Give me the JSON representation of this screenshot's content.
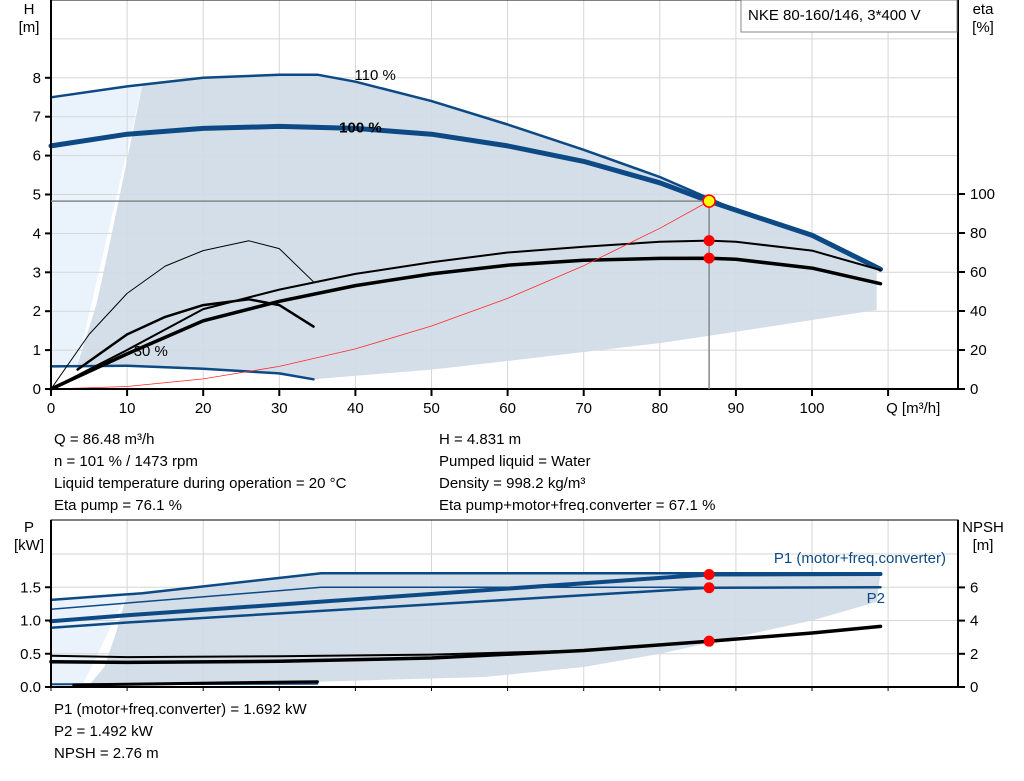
{
  "chart_data": [
    {
      "type": "line",
      "title": "NKE 80-160/146, 3*400 V",
      "xlabel": "Q [m³/h]",
      "ylabel": "H\n[m]",
      "ylabel_lines": [
        "H",
        "[m]"
      ],
      "y2label_lines": [
        "eta",
        "[%]"
      ],
      "xlim": [
        0,
        110
      ],
      "ylim": [
        0,
        9
      ],
      "y2lim": [
        0,
        100
      ],
      "grid": true,
      "x_ticks": [
        "0",
        "10",
        "20",
        "30",
        "40",
        "50",
        "60",
        "70",
        "80",
        "90",
        "100"
      ],
      "y_ticks": [
        "0",
        "1",
        "2",
        "3",
        "4",
        "5",
        "6",
        "7",
        "8"
      ],
      "y2_ticks": [
        "0",
        "20",
        "40",
        "60",
        "80",
        "100"
      ],
      "curve_labels": [
        "110 %",
        "100 %",
        "30 %"
      ],
      "series": [
        {
          "id": "head-110",
          "axis": "H",
          "color": "#0d4a85",
          "x": [
            0,
            10,
            20,
            30,
            35,
            40,
            50,
            60,
            70,
            80,
            86.48,
            90,
            100,
            109
          ],
          "y": [
            7.5,
            7.78,
            8.0,
            8.08,
            8.08,
            7.9,
            7.4,
            6.8,
            6.15,
            5.45,
            4.9,
            4.6,
            3.95,
            3.08
          ]
        },
        {
          "id": "head-100",
          "axis": "H",
          "color": "#0d4a85",
          "x": [
            0,
            10,
            20,
            30,
            40,
            50,
            60,
            70,
            80,
            86.48,
            90,
            100,
            109
          ],
          "y": [
            6.25,
            6.55,
            6.7,
            6.75,
            6.7,
            6.55,
            6.25,
            5.85,
            5.3,
            4.831,
            4.6,
            3.95,
            3.08
          ]
        },
        {
          "id": "head-30",
          "axis": "H",
          "color": "#0d4a85",
          "x": [
            0,
            10,
            20,
            30,
            34.5
          ],
          "y": [
            0.58,
            0.6,
            0.52,
            0.4,
            0.25
          ]
        },
        {
          "id": "eta-pump",
          "axis": "eta",
          "color": "#000000",
          "x": [
            0,
            10,
            20,
            30,
            40,
            50,
            60,
            70,
            80,
            86.48,
            90,
            100,
            109
          ],
          "y": [
            0,
            20,
            41,
            51,
            59,
            65,
            70,
            73,
            75.5,
            76.1,
            75.5,
            71,
            61
          ]
        },
        {
          "id": "eta-total",
          "axis": "eta",
          "color": "#000000",
          "x": [
            0,
            10,
            20,
            30,
            40,
            50,
            60,
            70,
            80,
            86.48,
            90,
            100,
            109
          ],
          "y": [
            0,
            18,
            35,
            45,
            53,
            59,
            63.5,
            66,
            67,
            67.1,
            66.5,
            62,
            54
          ]
        },
        {
          "id": "eta-pump-30",
          "axis": "eta",
          "color": "#000000",
          "x": [
            0,
            5,
            10,
            15,
            20,
            26,
            30,
            34.5
          ],
          "y": [
            0,
            28,
            49,
            63,
            71,
            76,
            72,
            55
          ]
        },
        {
          "id": "eta-total-30",
          "axis": "eta",
          "color": "#000000",
          "x": [
            3.5,
            10,
            15,
            20,
            26,
            30,
            34.5
          ],
          "y": [
            10,
            28,
            37,
            43,
            46,
            43,
            32
          ]
        },
        {
          "id": "system-curve",
          "axis": "H",
          "color": "#ff2a2a",
          "x": [
            0,
            10,
            20,
            30,
            40,
            50,
            60,
            70,
            80,
            86.48
          ],
          "y": [
            0,
            0.065,
            0.26,
            0.58,
            1.03,
            1.62,
            2.33,
            3.17,
            4.13,
            4.831
          ]
        }
      ],
      "envelope_outer": {
        "color": "#eaf3fc",
        "x": [
          0,
          12,
          3.4,
          0
        ],
        "y": [
          7.5,
          7.8,
          0.58,
          0.58
        ]
      },
      "envelope": {
        "color": "#cfdbe6",
        "x": [
          12,
          20,
          30,
          35,
          40,
          50,
          60,
          70,
          80,
          86.48,
          90,
          100,
          108.5,
          108.5,
          90,
          80,
          70,
          60,
          50,
          34.5,
          30,
          20,
          10,
          3.4,
          6,
          8,
          10,
          12
        ],
        "y": [
          7.8,
          8.0,
          8.08,
          8.08,
          7.9,
          7.4,
          6.8,
          6.15,
          5.45,
          4.9,
          4.6,
          3.95,
          3.1,
          2.03,
          1.47,
          1.18,
          0.95,
          0.72,
          0.5,
          0.25,
          0.4,
          0.52,
          0.6,
          0.58,
          2.2,
          4.0,
          5.9,
          7.8
        ]
      },
      "operating_point": {
        "x": 86.48,
        "y": 4.831,
        "eta_pump": 76.1,
        "eta_total": 67.1
      }
    },
    {
      "type": "line",
      "xlim": [
        0,
        110
      ],
      "ylim": [
        0,
        2.5
      ],
      "y2lim": [
        0,
        10
      ],
      "ylabel_lines": [
        "P",
        "[kW]"
      ],
      "y2label_lines": [
        "NPSH",
        "[m]"
      ],
      "grid": true,
      "y_ticks": [
        "0.0",
        "0.5",
        "1.0",
        "1.5"
      ],
      "y2_ticks": [
        "0",
        "2",
        "4",
        "6"
      ],
      "series_labels": [
        "P1 (motor+freq.converter)",
        "P2"
      ],
      "series": [
        {
          "id": "p1-110",
          "axis": "P",
          "color": "#0d4a85",
          "x": [
            0,
            12,
            35.5,
            109
          ],
          "y": [
            1.31,
            1.41,
            1.71,
            1.71
          ]
        },
        {
          "id": "p2-110",
          "axis": "P",
          "color": "#0d4a85",
          "x": [
            0,
            35.5,
            109
          ],
          "y": [
            1.17,
            1.5,
            1.5
          ]
        },
        {
          "id": "p1-100",
          "name": "P1 (motor+freq.converter)",
          "axis": "P",
          "color": "#0d4a85",
          "x": [
            0,
            10,
            86.48,
            109
          ],
          "y": [
            0.99,
            1.08,
            1.692,
            1.7
          ]
        },
        {
          "id": "p2-100",
          "name": "P2",
          "axis": "P",
          "color": "#0d4a85",
          "x": [
            0,
            10,
            86.48,
            109
          ],
          "y": [
            0.89,
            0.97,
            1.492,
            1.5
          ]
        },
        {
          "id": "p-30",
          "axis": "P",
          "color": "#0d4a85",
          "x": [
            0,
            35
          ],
          "y": [
            0.04,
            0.05
          ]
        },
        {
          "id": "p-30-b",
          "axis": "P",
          "color": "#000000",
          "x": [
            3,
            35
          ],
          "y": [
            0.03,
            0.08
          ]
        },
        {
          "id": "npsh-110",
          "axis": "NPSH",
          "color": "#000000",
          "x": [
            0,
            10,
            30,
            50,
            70
          ],
          "y": [
            1.88,
            1.8,
            1.85,
            1.95,
            2.2
          ]
        },
        {
          "id": "npsh-100",
          "axis": "NPSH",
          "color": "#000000",
          "x": [
            0,
            10,
            30,
            50,
            70,
            86.48,
            100,
            109
          ],
          "y": [
            1.52,
            1.48,
            1.55,
            1.75,
            2.2,
            2.76,
            3.25,
            3.65
          ]
        }
      ],
      "envelope_outer": {
        "color": "#eaf3fc",
        "x": [
          0,
          10,
          4,
          0
        ],
        "y": [
          1.31,
          1.4,
          0,
          0
        ]
      },
      "envelope": {
        "color": "#cfdbe6",
        "x": [
          10,
          12,
          35.5,
          109,
          108.5,
          100,
          90,
          80,
          70,
          57,
          35,
          5,
          7,
          8.5,
          10
        ],
        "y": [
          1.4,
          1.41,
          1.71,
          1.71,
          1.28,
          1.0,
          0.75,
          0.5,
          0.3,
          0.15,
          0.08,
          0.03,
          0.3,
          0.8,
          1.4
        ]
      },
      "operating_point": {
        "x": 86.48,
        "p1": 1.692,
        "p2": 1.492,
        "npsh": 2.76
      }
    }
  ],
  "info_top": {
    "left": [
      "Q = 86.48 m³/h",
      "n = 101 % / 1473 rpm",
      "Liquid temperature during operation = 20 °C",
      "Eta pump = 76.1 %"
    ],
    "right": [
      "H = 4.831 m",
      "Pumped liquid = Water",
      "Density = 998.2 kg/m³",
      "Eta pump+motor+freq.converter = 67.1 %"
    ]
  },
  "info_bottom": [
    "P1 (motor+freq.converter) = 1.692 kW",
    "P2 = 1.492 kW",
    "NPSH = 2.76 m"
  ],
  "colors": {
    "curve": "#0d4a85",
    "envelope": "#cfdbe6",
    "envelope_outer": "#eaf3fc",
    "grid": "#d6d6d6",
    "system": "#ff2a2a",
    "marker": "#ff0000",
    "op_fill": "#ffff00"
  }
}
